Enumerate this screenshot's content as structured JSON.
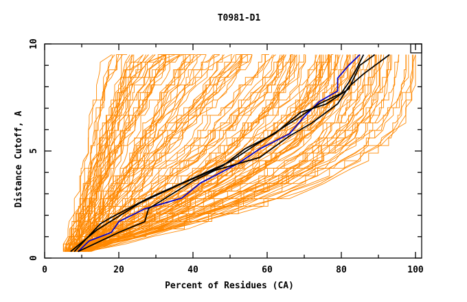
{
  "chart_data": {
    "type": "line",
    "title": "T0981-D1",
    "xlabel": "Percent of Residues (CA)",
    "ylabel": "Distance Cutoff, A",
    "xlim": [
      0,
      100
    ],
    "ylim": [
      0,
      10
    ],
    "x_ticks": [
      0,
      20,
      40,
      60,
      80,
      100
    ],
    "x_tick_labels": [
      "0",
      "20",
      "40",
      "60",
      "80",
      "100"
    ],
    "x_minor_step": 10,
    "y_ticks": [
      0,
      5,
      10
    ],
    "y_tick_labels": [
      "0",
      "5",
      "10"
    ],
    "y_minor_step": 1,
    "grid": false,
    "legend": "none",
    "colors": {
      "models": "#ff8800",
      "reference_black": "#000000",
      "reference_blue": "#0000cc"
    },
    "model_curves": {
      "description": "Many orange GDT-style cumulative curves; each rises from ~0.3 A to ~9.5 A. Endpoints (percent at 0.3 A start, percent at 9.5 A end) and curvature shape are estimated from the envelope.",
      "count": 150,
      "y_start": 0.3,
      "y_end": 9.5,
      "x_start_range": [
        5,
        12
      ],
      "x_end_range": [
        17,
        100
      ],
      "right_envelope": [
        [
          10,
          0.3
        ],
        [
          40,
          1.5
        ],
        [
          60,
          2.5
        ],
        [
          75,
          3.5
        ],
        [
          86,
          4.5
        ],
        [
          95,
          6
        ],
        [
          99,
          7.5
        ],
        [
          100,
          9.5
        ]
      ],
      "left_envelope": [
        [
          5,
          0.3
        ],
        [
          8,
          1.5
        ],
        [
          12,
          3
        ],
        [
          15,
          5
        ],
        [
          17,
          7
        ],
        [
          17,
          9.5
        ]
      ]
    },
    "series": [
      {
        "name": "reference-blue",
        "color": "#0000cc",
        "points": [
          [
            9,
            0.3
          ],
          [
            12,
            0.8
          ],
          [
            18,
            1.2
          ],
          [
            20,
            1.7
          ],
          [
            27,
            2.3
          ],
          [
            37,
            2.8
          ],
          [
            42,
            3.5
          ],
          [
            52,
            4.4
          ],
          [
            58,
            5.1
          ],
          [
            66,
            5.8
          ],
          [
            70,
            6.6
          ],
          [
            74,
            7.3
          ],
          [
            79,
            7.8
          ],
          [
            79,
            8.4
          ],
          [
            82,
            9.0
          ],
          [
            85,
            9.5
          ]
        ]
      },
      {
        "name": "reference-black-1",
        "color": "#000000",
        "points": [
          [
            8,
            0.3
          ],
          [
            15,
            1.6
          ],
          [
            18,
            1.9
          ],
          [
            28,
            2.8
          ],
          [
            37,
            3.5
          ],
          [
            50,
            4.5
          ],
          [
            57,
            5.3
          ],
          [
            68,
            6.5
          ],
          [
            74,
            7.2
          ],
          [
            80,
            7.7
          ],
          [
            82,
            8.2
          ],
          [
            84,
            8.8
          ],
          [
            86,
            9.5
          ]
        ]
      },
      {
        "name": "reference-black-2",
        "color": "#000000",
        "points": [
          [
            7,
            0.3
          ],
          [
            14,
            1.3
          ],
          [
            26,
            2.6
          ],
          [
            36,
            3.4
          ],
          [
            48,
            4.3
          ],
          [
            54,
            5.1
          ],
          [
            62,
            5.8
          ],
          [
            69,
            6.8
          ],
          [
            76,
            7.2
          ],
          [
            82,
            7.9
          ],
          [
            85,
            9.0
          ],
          [
            89,
            9.5
          ]
        ]
      },
      {
        "name": "reference-black-3",
        "color": "#000000",
        "points": [
          [
            9,
            0.3
          ],
          [
            20,
            1.2
          ],
          [
            27,
            1.7
          ],
          [
            28,
            2.3
          ],
          [
            40,
            3.6
          ],
          [
            46,
            4.1
          ],
          [
            58,
            4.7
          ],
          [
            66,
            5.7
          ],
          [
            72,
            6.3
          ],
          [
            79,
            7.2
          ],
          [
            82,
            8.0
          ],
          [
            86,
            8.6
          ],
          [
            93,
            9.5
          ]
        ]
      }
    ]
  }
}
